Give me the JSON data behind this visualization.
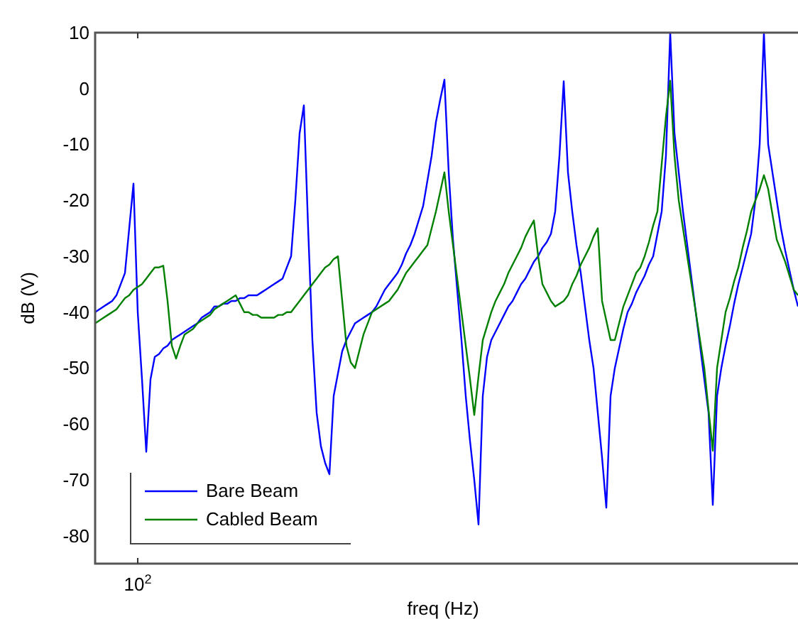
{
  "chart_data": {
    "type": "line",
    "xlabel": "freq (Hz)",
    "ylabel": "dB (V)",
    "ylim": [
      -85,
      10
    ],
    "yticks": [
      -80,
      -70,
      -60,
      -50,
      -40,
      -30,
      -20,
      -10,
      0,
      10
    ],
    "grid": false,
    "legend": "bottom left",
    "marker": "none",
    "line_style": "solid",
    "categories": [
      null,
      null,
      null,
      null,
      null,
      null,
      null,
      null,
      null,
      null,
      "10$^{2}$",
      null,
      null,
      null,
      null,
      null,
      null,
      null,
      null,
      null,
      null,
      null,
      null,
      null,
      null,
      null,
      null,
      null,
      null,
      null,
      null,
      null,
      null,
      null,
      null,
      null,
      null,
      null,
      null,
      null,
      null,
      null,
      null,
      null,
      null,
      null,
      null,
      null,
      null,
      null,
      null,
      null,
      null,
      null,
      null,
      null,
      null,
      null,
      null,
      null,
      null,
      null,
      null,
      null,
      null,
      null,
      null,
      null,
      null,
      null,
      null,
      null,
      null,
      null,
      null,
      null,
      null,
      null,
      null,
      null,
      null,
      null,
      null,
      null,
      null,
      null,
      null,
      null,
      null,
      null,
      null,
      null,
      null,
      null,
      null,
      null,
      null,
      null,
      null,
      null,
      null,
      null,
      null,
      null,
      null,
      null,
      null,
      null,
      null,
      null,
      null,
      null,
      null,
      null,
      null,
      null,
      null,
      null,
      null,
      null,
      null,
      null,
      null,
      null,
      null,
      null,
      null,
      null,
      null,
      null,
      null,
      null,
      null,
      null,
      null,
      null,
      null,
      null,
      null,
      null,
      null,
      null,
      null,
      null,
      null,
      null,
      null,
      null,
      null,
      null,
      null,
      null,
      null,
      null,
      null,
      null,
      null,
      null,
      null,
      null,
      null,
      null,
      null,
      null,
      null,
      null
    ],
    "series": [
      {
        "name": "Bare Beam",
        "color": "#0000ff",
        "values": [
          -40,
          -39.5,
          -39,
          -38.5,
          -38,
          -37,
          -35,
          -33,
          -25,
          -17,
          -40,
          -52,
          -65,
          -52,
          -48,
          -47.5,
          -46.5,
          -46,
          -45,
          -44.5,
          -44,
          -43.5,
          -43,
          -42.5,
          -42,
          -41,
          -40.5,
          -40,
          -39,
          -39,
          -38.5,
          -38.5,
          -38,
          -38,
          -37.5,
          -37.5,
          -37,
          -37,
          -37,
          -36.5,
          -36,
          -35.5,
          -35,
          -34.5,
          -34,
          -32,
          -30,
          -20,
          -8,
          -3,
          -25,
          -45,
          -58,
          -64,
          -67,
          -69,
          -55,
          -51,
          -47,
          -45,
          -43.5,
          -42,
          -41.5,
          -41,
          -40.5,
          -40,
          -39,
          -37.5,
          -36,
          -35,
          -34,
          -33,
          -31.5,
          -29.5,
          -28,
          -26,
          -23.5,
          -21,
          -16.5,
          -12,
          -6,
          -2,
          1.6,
          -15,
          -27,
          -36,
          -45,
          -55,
          -63,
          -70,
          -78,
          -55,
          -48,
          -45,
          -43.5,
          -42,
          -40.5,
          -39,
          -38,
          -36.5,
          -35,
          -34,
          -32.5,
          -31,
          -30,
          -28.5,
          -27.5,
          -26,
          -22,
          -12,
          1.3,
          -15,
          -22,
          -28,
          -33,
          -39,
          -45,
          -50,
          -58,
          -66,
          -75,
          -55,
          -50,
          -46.5,
          -43,
          -40,
          -38.5,
          -36.5,
          -35,
          -33.5,
          -31.5,
          -30,
          -26,
          -22,
          -12,
          10,
          -8,
          -15,
          -22,
          -28,
          -34,
          -40,
          -46,
          -52,
          -58,
          -74.5,
          -55,
          -50,
          -46,
          -42.5,
          -38.5,
          -35,
          -32,
          -29,
          -26,
          -20,
          -10,
          10,
          -10,
          -15,
          -20,
          -25,
          -29,
          -32.5,
          -36,
          -39
        ]
      },
      {
        "name": "Cabled Beam",
        "color": "#008000",
        "values": [
          -42,
          -41.5,
          -41,
          -40.5,
          -40,
          -39.5,
          -38.5,
          -37.5,
          -37,
          -36,
          -35.5,
          -35,
          -34,
          -33,
          -32,
          -32,
          -31.7,
          -38,
          -46,
          -48.3,
          -46,
          -44,
          -43.5,
          -43,
          -42,
          -41.5,
          -41,
          -40.5,
          -39.5,
          -39,
          -38.5,
          -38,
          -37.5,
          -37,
          -38.5,
          -40,
          -40,
          -40.5,
          -40.5,
          -41,
          -41,
          -41,
          -41,
          -40.5,
          -40.5,
          -40,
          -40,
          -39,
          -38,
          -37,
          -36,
          -35,
          -34,
          -33,
          -32,
          -31.5,
          -30.5,
          -30,
          -38,
          -46,
          -49,
          -50,
          -47,
          -44,
          -42,
          -40,
          -39.5,
          -39,
          -38.5,
          -38,
          -37,
          -36,
          -34.5,
          -33,
          -32,
          -31,
          -30,
          -29,
          -28,
          -25,
          -22,
          -18.5,
          -15,
          -22,
          -28,
          -34,
          -40,
          -46,
          -52,
          -58.4,
          -51.5,
          -45,
          -42.5,
          -40,
          -38,
          -36.5,
          -35,
          -33,
          -31.5,
          -30,
          -28.5,
          -26.5,
          -25,
          -23.6,
          -30,
          -35,
          -36.5,
          -38,
          -39,
          -38.5,
          -38,
          -37,
          -35,
          -33.5,
          -31.5,
          -30,
          -28.5,
          -26.5,
          -25,
          -38,
          -41.5,
          -45,
          -45,
          -42,
          -39,
          -37,
          -35,
          -33,
          -32,
          -30,
          -27.5,
          -24.5,
          -22,
          -13.5,
          -5,
          1.4,
          -12,
          -20,
          -25,
          -30,
          -35,
          -40,
          -45,
          -50,
          -57.5,
          -64.8,
          -50,
          -45,
          -40,
          -37.5,
          -34.5,
          -32,
          -28.5,
          -25.5,
          -22,
          -20,
          -18,
          -15.5,
          -18,
          -22.5,
          -27,
          -29,
          -31,
          -33.5,
          -36,
          -37
        ]
      }
    ]
  }
}
